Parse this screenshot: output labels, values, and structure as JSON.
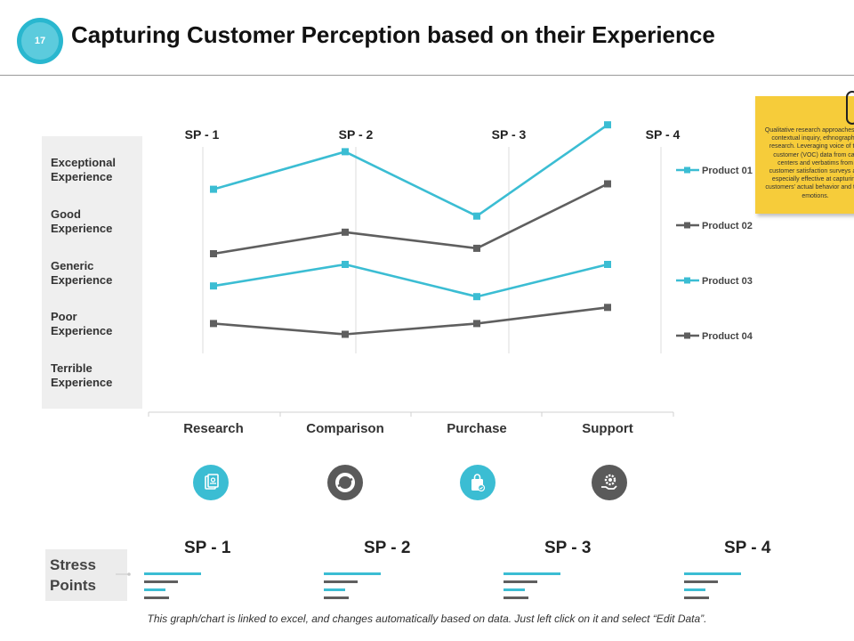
{
  "slide": {
    "number": "17",
    "title": "Capturing Customer Perception based on their Experience"
  },
  "scale": {
    "levels": [
      "Exceptional\nExperience",
      "Good\nExperience",
      "Generic\nExperience",
      "Poor\nExperience",
      "Terrible\nExperience"
    ]
  },
  "colors": {
    "teal": "#3bbdd3",
    "gray": "#5f5f5f",
    "badge": "#29b7cf",
    "note": "#f6cc3a"
  },
  "chart_data": {
    "type": "line",
    "categories": [
      "Research",
      "Comparison",
      "Purchase",
      "Support"
    ],
    "stage_headers": [
      "SP - 1",
      "SP - 2",
      "SP - 3",
      "SP - 4"
    ],
    "ylim": [
      0,
      6
    ],
    "grid": false,
    "legend_position": "right",
    "series": [
      {
        "name": "Product 01",
        "color": "#3bbdd3",
        "values": [
          4.3,
          5.0,
          3.8,
          5.5
        ]
      },
      {
        "name": "Product 02",
        "color": "#5f5f5f",
        "values": [
          3.1,
          3.5,
          3.2,
          4.4
        ]
      },
      {
        "name": "Product 03",
        "color": "#3bbdd3",
        "values": [
          2.5,
          2.9,
          2.3,
          2.9
        ]
      },
      {
        "name": "Product 04",
        "color": "#5f5f5f",
        "values": [
          1.8,
          1.6,
          1.8,
          2.1
        ]
      }
    ]
  },
  "icons": [
    "document-icon",
    "donut-icon",
    "shopping-bag-icon",
    "gear-hand-icon"
  ],
  "note": {
    "text": "Qualitative research approaches like contextual inquiry, ethnographic research. Leveraging voice of the customer (VOC) data from call centers and verbatims from customer satisfaction surveys are especially effective at capturing customers' actual behavior and their emotions."
  },
  "stress": {
    "label": "Stress\nPoints",
    "points": [
      "SP - 1",
      "SP - 2",
      "SP - 3",
      "SP - 4"
    ]
  },
  "footer": "This graph/chart is linked to excel, and changes automatically based on data. Just left click on it and select “Edit Data”."
}
